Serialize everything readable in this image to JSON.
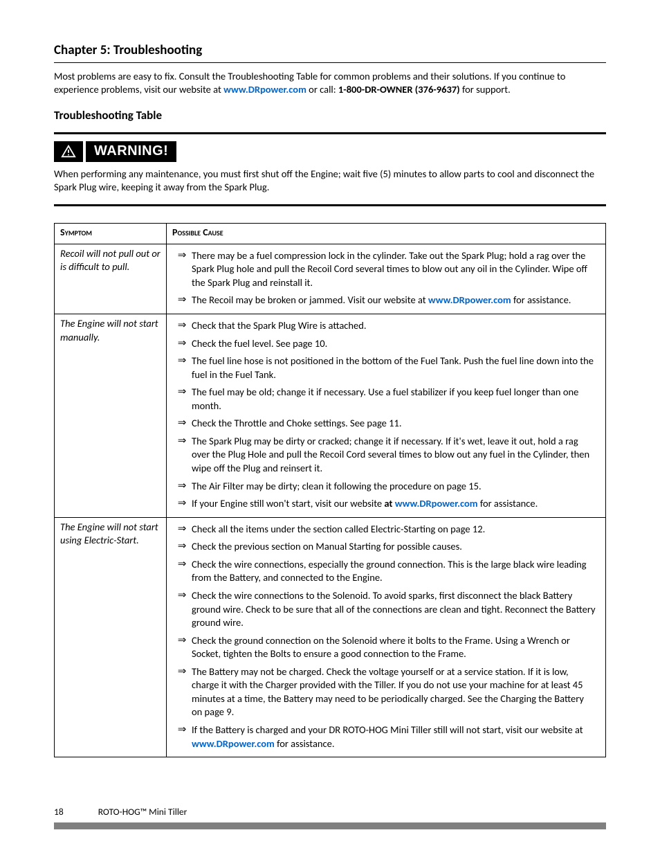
{
  "chapter_title": "Chapter 5:  Troubleshooting",
  "intro": {
    "p1a": "Most problems are easy to fix.  Consult the Troubleshooting Table for common problems and their solutions.  If you continue to experience problems, visit our website at ",
    "link1": "www.DRpower.com",
    "p1b": " or call: ",
    "phone": "1-800-DR-OWNER (376-9637)",
    "p1c": " for support."
  },
  "subheading": "Troubleshooting Table",
  "warning_label": "WARNING!",
  "warning_body": "When performing any maintenance, you must first shut off the Engine; wait five (5) minutes to allow parts to cool and disconnect the Spark Plug wire, keeping it away from the Spark Plug.",
  "table": {
    "header_symptom": "Symptom",
    "header_cause": "Possible Cause",
    "rows": [
      {
        "symptom": "Recoil will not pull out or is difficult to pull.",
        "causes": [
          {
            "text": "There may be a fuel compression lock in the cylinder.  Take out the Spark Plug; hold a rag over the Spark Plug hole and pull the Recoil Cord several times to blow out any oil in the Cylinder.  Wipe off the Spark Plug and reinstall it."
          },
          {
            "pre": "The Recoil may be broken or jammed.  Visit our website at ",
            "link": "www.DRpower.com",
            "post": " for assistance."
          }
        ]
      },
      {
        "symptom": "The Engine will not start manually.",
        "causes": [
          {
            "text": "Check that the Spark Plug Wire is attached."
          },
          {
            "text": "Check the fuel level. See page 10."
          },
          {
            "text": "The fuel line hose is not positioned in the bottom of the Fuel Tank.  Push the fuel line down into the fuel in the Fuel Tank."
          },
          {
            "text": "The fuel may be old; change it if necessary.  Use a fuel stabilizer if you keep fuel longer than one month."
          },
          {
            "text": "Check the Throttle and Choke settings.  See page 11."
          },
          {
            "text": "The Spark Plug may be dirty or cracked; change it if necessary.  If it's wet, leave it out, hold a rag over the Plug Hole and pull the Recoil Cord several times to blow out any fuel in the Cylinder, then wipe off the Plug and reinsert it."
          },
          {
            "text": "The Air Filter may be dirty; clean it following the procedure on page 15."
          },
          {
            "pre": "If your Engine still won't start, visit our website ",
            "boldpre": "at ",
            "link": "www.DRpower.com",
            "post": " for assistance."
          }
        ]
      },
      {
        "symptom": "The Engine will not start using Electric-Start.",
        "causes": [
          {
            "text": "Check all the items under the section called Electric-Starting on page 12."
          },
          {
            "text": "Check the previous section on Manual Starting for possible causes."
          },
          {
            "text": "Check the wire connections, especially the ground connection.  This is the large black wire leading from the Battery, and connected to the Engine."
          },
          {
            "text": "Check the wire connections to the Solenoid.  To avoid sparks, first disconnect the black Battery ground wire.  Check to be sure that all of the connections are clean and tight.  Reconnect the Battery ground wire."
          },
          {
            "text": "Check the ground connection on the Solenoid where it bolts to the Frame.  Using a Wrench or Socket, tighten the Bolts to ensure a good connection to the Frame."
          },
          {
            "text": "The Battery may not be charged.  Check the voltage yourself or at a service station.  If it is low, charge it with the Charger provided with the Tiller.  If you do not use your machine for at least 45 minutes at a time, the Battery may need to be periodically charged.  See the Charging the Battery on page 9."
          },
          {
            "pre": "If the Battery is charged and your DR ROTO-HOG Mini Tiller still will not start, visit our website at ",
            "link": "www.DRpower.com",
            "post": " for assistance."
          }
        ]
      }
    ]
  },
  "footer": {
    "page": "18",
    "product": "ROTO-HOG™ Mini Tiller"
  },
  "colors": {
    "link": "#0066cc",
    "rule": "#000000",
    "footer_bar": "#808080"
  }
}
